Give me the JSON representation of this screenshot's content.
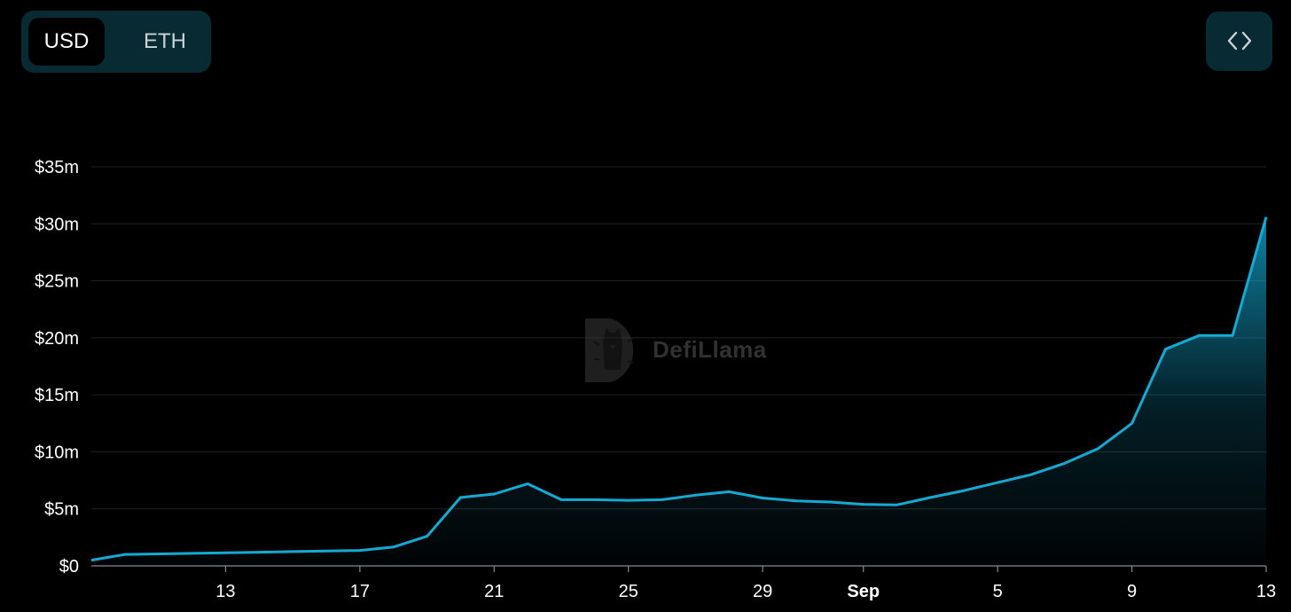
{
  "currency_toggle": {
    "options": [
      {
        "label": "USD",
        "active": true
      },
      {
        "label": "ETH",
        "active": false
      }
    ]
  },
  "embed_button": {
    "icon": "code-brackets-icon"
  },
  "watermark": {
    "text": "DefiLlama",
    "icon": "llama-logo-icon"
  },
  "colors": {
    "background": "#000000",
    "line": "#14aad4",
    "toggle_bg": "#072a33",
    "grid": "#222222"
  },
  "chart_data": {
    "type": "area",
    "x": [
      "Aug 9",
      "Aug 10",
      "Aug 11",
      "Aug 12",
      "Aug 13",
      "Aug 14",
      "Aug 15",
      "Aug 16",
      "Aug 17",
      "Aug 18",
      "Aug 19",
      "Aug 20",
      "Aug 21",
      "Aug 22",
      "Aug 23",
      "Aug 24",
      "Aug 25",
      "Aug 26",
      "Aug 27",
      "Aug 28",
      "Aug 29",
      "Aug 30",
      "Aug 31",
      "Sep 1",
      "Sep 2",
      "Sep 3",
      "Sep 4",
      "Sep 5",
      "Sep 6",
      "Sep 7",
      "Sep 8",
      "Sep 9",
      "Sep 10",
      "Sep 11",
      "Sep 12",
      "Sep 13"
    ],
    "series": [
      {
        "values": [
          0.5,
          1.0,
          1.05,
          1.1,
          1.15,
          1.2,
          1.25,
          1.3,
          1.35,
          1.65,
          2.6,
          6.0,
          6.3,
          7.2,
          5.8,
          5.8,
          5.75,
          5.8,
          6.2,
          6.5,
          5.95,
          5.7,
          5.6,
          5.4,
          5.35,
          6.0,
          6.6,
          7.3,
          8.0,
          9.0,
          10.3,
          12.5,
          19.0,
          20.2,
          20.2,
          30.6
        ]
      }
    ],
    "unit": "millions USD",
    "ylim": [
      0,
      35
    ],
    "yticks": [
      0,
      5,
      10,
      15,
      20,
      25,
      30,
      35
    ],
    "ytick_labels": [
      "$0",
      "$5m",
      "$10m",
      "$15m",
      "$20m",
      "$25m",
      "$30m",
      "$35m"
    ],
    "xticks": [
      {
        "date": "Aug 13",
        "label": "13",
        "bold": false
      },
      {
        "date": "Aug 17",
        "label": "17",
        "bold": false
      },
      {
        "date": "Aug 21",
        "label": "21",
        "bold": false
      },
      {
        "date": "Aug 25",
        "label": "25",
        "bold": false
      },
      {
        "date": "Aug 29",
        "label": "29",
        "bold": false
      },
      {
        "date": "Sep 1",
        "label": "Sep",
        "bold": true
      },
      {
        "date": "Sep 5",
        "label": "5",
        "bold": false
      },
      {
        "date": "Sep 9",
        "label": "9",
        "bold": false
      },
      {
        "date": "Sep 13",
        "label": "13",
        "bold": false
      }
    ],
    "grid": true,
    "legend": "none"
  }
}
